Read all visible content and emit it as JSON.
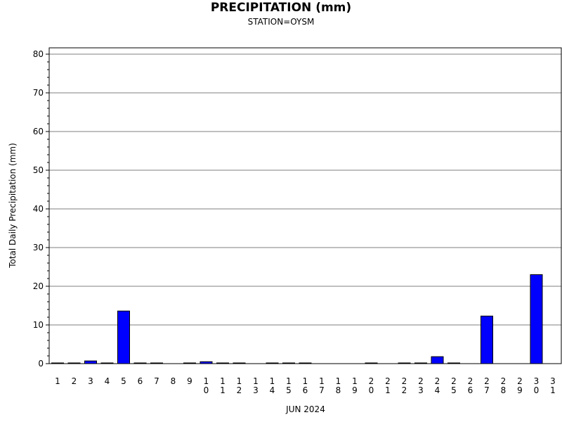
{
  "chart_data": {
    "type": "bar",
    "title": "PRECIPITATION (mm)",
    "subtitle": "STATION=OYSM",
    "xlabel": "JUN 2024",
    "ylabel": "Total Daily Precipitation (mm)",
    "ylim": [
      0,
      80
    ],
    "yticks": [
      0,
      10,
      20,
      30,
      40,
      50,
      60,
      70,
      80
    ],
    "grid": true,
    "bar_color": "#0000ff",
    "categories": [
      "1",
      "2",
      "3",
      "4",
      "5",
      "6",
      "7",
      "8",
      "9",
      "10",
      "11",
      "12",
      "13",
      "14",
      "15",
      "16",
      "17",
      "18",
      "19",
      "20",
      "21",
      "22",
      "23",
      "24",
      "25",
      "26",
      "27",
      "28",
      "29",
      "30",
      "31"
    ],
    "values": [
      0.1,
      0.1,
      0.7,
      0.1,
      13.6,
      0.1,
      0.1,
      null,
      0.1,
      0.5,
      0.1,
      0.1,
      null,
      0.1,
      0.1,
      0.1,
      null,
      null,
      null,
      0.1,
      null,
      0.1,
      0.1,
      1.8,
      0.1,
      null,
      12.3,
      null,
      null,
      23.0,
      null
    ]
  }
}
